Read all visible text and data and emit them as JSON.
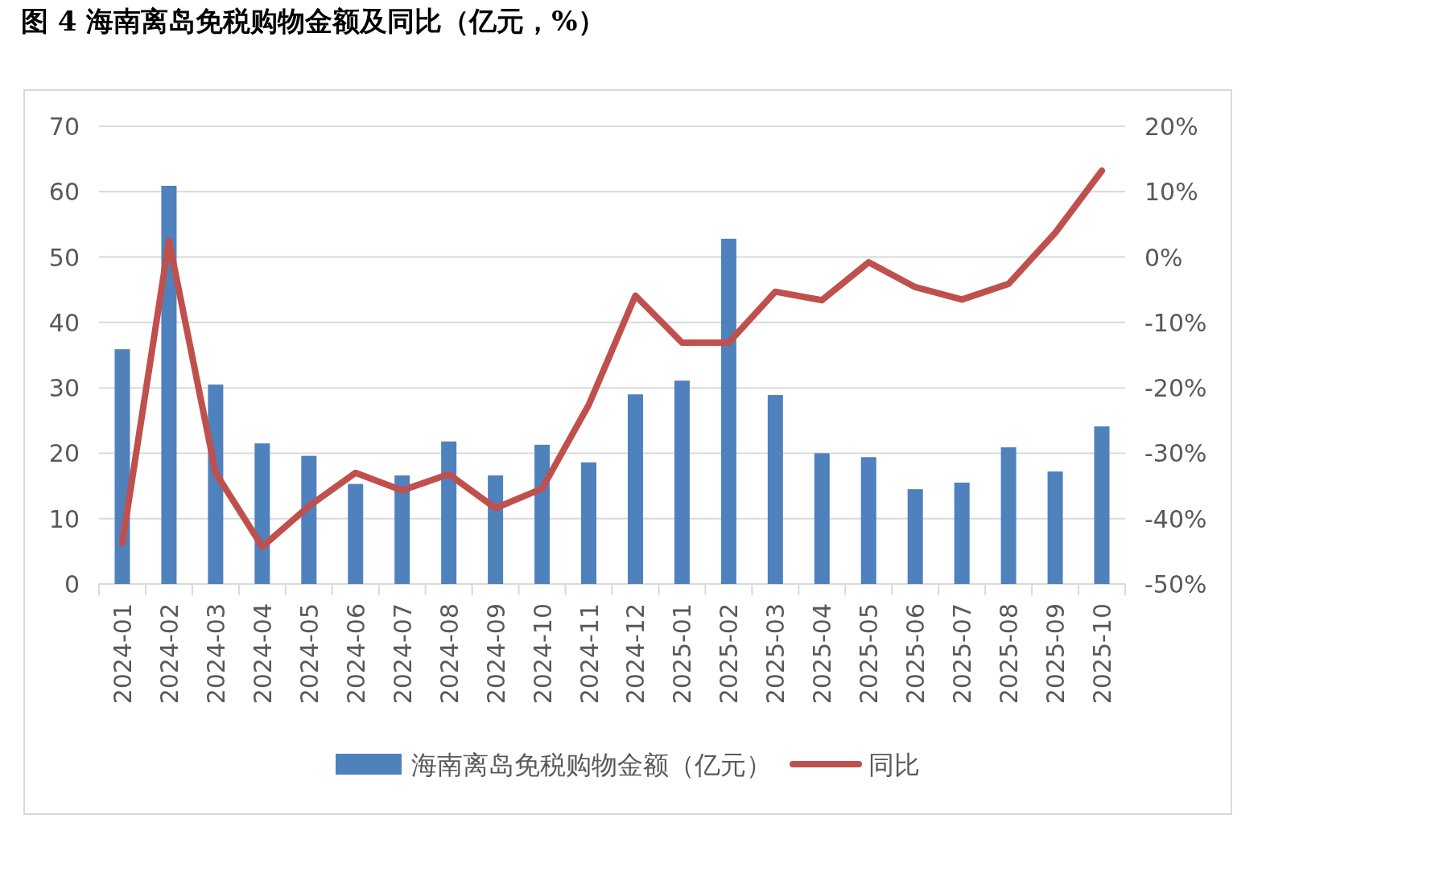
{
  "chart_data": {
    "type": "bar",
    "title": "图 4  海南离岛免税购物金额及同比（亿元，%）",
    "categories": [
      "2024-01",
      "2024-02",
      "2024-03",
      "2024-04",
      "2024-05",
      "2024-06",
      "2024-07",
      "2024-08",
      "2024-09",
      "2024-10",
      "2024-11",
      "2024-12",
      "2025-01",
      "2025-02",
      "2025-03",
      "2025-04",
      "2025-05",
      "2025-06",
      "2025-07",
      "2025-08",
      "2025-09",
      "2025-10"
    ],
    "series": [
      {
        "name": "海南离岛免税购物金额（亿元）",
        "color": "#4f81bd",
        "values": [
          35.9,
          60.9,
          30.5,
          21.5,
          19.6,
          15.3,
          16.6,
          21.8,
          16.6,
          21.3,
          18.6,
          29.0,
          31.1,
          52.8,
          28.9,
          20.0,
          19.4,
          14.5,
          15.5,
          20.9,
          17.2,
          24.1
        ]
      },
      {
        "name": "同比",
        "type": "line",
        "axis": "y2",
        "color": "#c0504d",
        "values": [
          -43.7,
          2.5,
          -33.0,
          -44.3,
          -38.1,
          -33.0,
          -35.7,
          -33.2,
          -38.4,
          -35.4,
          -22.6,
          -5.9,
          -13.1,
          -13.1,
          -5.3,
          -6.6,
          -0.8,
          -4.6,
          -6.5,
          -4.1,
          3.7,
          13.2
        ]
      }
    ],
    "ylim": [
      0,
      70
    ],
    "yticks": [
      0,
      10,
      20,
      30,
      40,
      50,
      60,
      70
    ],
    "y2lim": [
      -50,
      20
    ],
    "y2ticks": [
      {
        "value": -50,
        "label": "-50%"
      },
      {
        "value": -40,
        "label": "-40%"
      },
      {
        "value": -30,
        "label": "-30%"
      },
      {
        "value": -20,
        "label": "-20%"
      },
      {
        "value": -10,
        "label": "-10%"
      },
      {
        "value": 0,
        "label": "0%"
      },
      {
        "value": 10,
        "label": "10%"
      },
      {
        "value": 20,
        "label": "20%"
      }
    ],
    "grid": "y",
    "legend": "bottom"
  }
}
